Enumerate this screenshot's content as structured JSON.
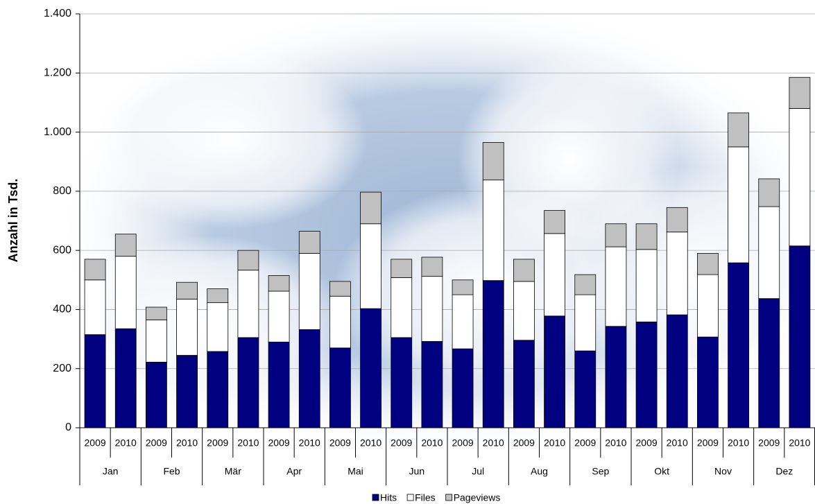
{
  "chart_data": {
    "type": "stacked_bar",
    "y_label": "Anzahl in Tsd.",
    "categories": [
      "2009",
      "2010",
      "2009",
      "2010",
      "2009",
      "2010",
      "2009",
      "2010",
      "2009",
      "2010",
      "2009",
      "2010",
      "2009",
      "2010",
      "2009",
      "2010",
      "2009",
      "2010",
      "2009",
      "2010",
      "2009",
      "2010",
      "2009",
      "2010"
    ],
    "groups": [
      "Jan",
      "Feb",
      "Mär",
      "Apr",
      "Mai",
      "Jun",
      "Jul",
      "Aug",
      "Sep",
      "Okt",
      "Nov",
      "Dez"
    ],
    "series": [
      {
        "name": "Hits",
        "color": "#000080",
        "values": [
          315,
          335,
          222,
          245,
          258,
          305,
          290,
          332,
          270,
          403,
          305,
          292,
          267,
          498,
          296,
          378,
          260,
          343,
          358,
          382,
          307,
          558,
          437,
          615
        ]
      },
      {
        "name": "Files",
        "color": "#ffffff",
        "values": [
          185,
          245,
          143,
          190,
          165,
          228,
          172,
          258,
          175,
          287,
          203,
          220,
          183,
          340,
          199,
          279,
          190,
          269,
          245,
          280,
          211,
          392,
          311,
          465
        ]
      },
      {
        "name": "Pageviews",
        "color": "#c0c0c0",
        "values": [
          70,
          75,
          43,
          57,
          47,
          67,
          53,
          75,
          50,
          107,
          62,
          65,
          50,
          127,
          75,
          78,
          68,
          78,
          87,
          83,
          72,
          115,
          94,
          105
        ]
      }
    ],
    "ylim": [
      0,
      1400
    ],
    "yticks": [
      0,
      200,
      400,
      600,
      800,
      {
        "value": 1000,
        "label": "1.000"
      },
      {
        "value": 1200,
        "label": "1.200"
      },
      {
        "value": 1400,
        "label": "1.400"
      }
    ],
    "grid": true
  }
}
